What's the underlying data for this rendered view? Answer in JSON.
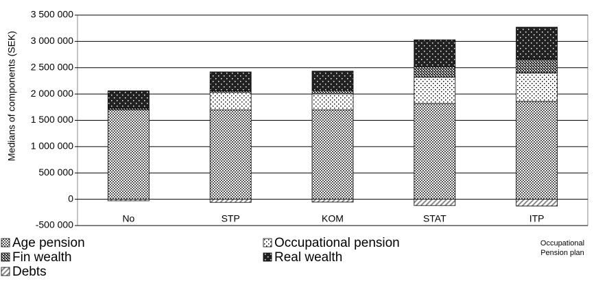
{
  "chart_data": {
    "type": "stacked-bar",
    "y_label": "Medians of components (SEK)",
    "x_label": "Occupational Pension plan",
    "categories": [
      "No",
      "STP",
      "KOM",
      "STAT",
      "ITP"
    ],
    "series": [
      {
        "name": "Age pension",
        "color": "#555555",
        "values": [
          1700000,
          1700000,
          1700000,
          1820000,
          1860000
        ]
      },
      {
        "name": "Occupational pension",
        "color": "#000000",
        "values": [
          0,
          330000,
          300000,
          500000,
          540000
        ]
      },
      {
        "name": "Fin wealth",
        "color": "#333333",
        "values": [
          30000,
          30000,
          70000,
          200000,
          260000
        ]
      },
      {
        "name": "Real wealth",
        "color": "#222222",
        "values": [
          330000,
          360000,
          365000,
          510000,
          610000
        ]
      },
      {
        "name": "Debts",
        "color": "#888888",
        "values": [
          -30000,
          -60000,
          -55000,
          -120000,
          -130000
        ]
      }
    ],
    "ylim": [
      -500000,
      3500000
    ],
    "yticks": [
      {
        "value": -500000,
        "label": "-500 000"
      },
      0,
      {
        "value": 500000,
        "label": "500 000"
      },
      {
        "value": 1000000,
        "label": "1 000 000"
      },
      {
        "value": 1500000,
        "label": "1 500 000"
      },
      {
        "value": 2000000,
        "label": "2 000 000"
      },
      {
        "value": 2500000,
        "label": "2 500 000"
      },
      {
        "value": 3000000,
        "label": "3 000 000"
      },
      {
        "value": 3500000,
        "label": "3 500 000"
      }
    ],
    "grid": true
  }
}
